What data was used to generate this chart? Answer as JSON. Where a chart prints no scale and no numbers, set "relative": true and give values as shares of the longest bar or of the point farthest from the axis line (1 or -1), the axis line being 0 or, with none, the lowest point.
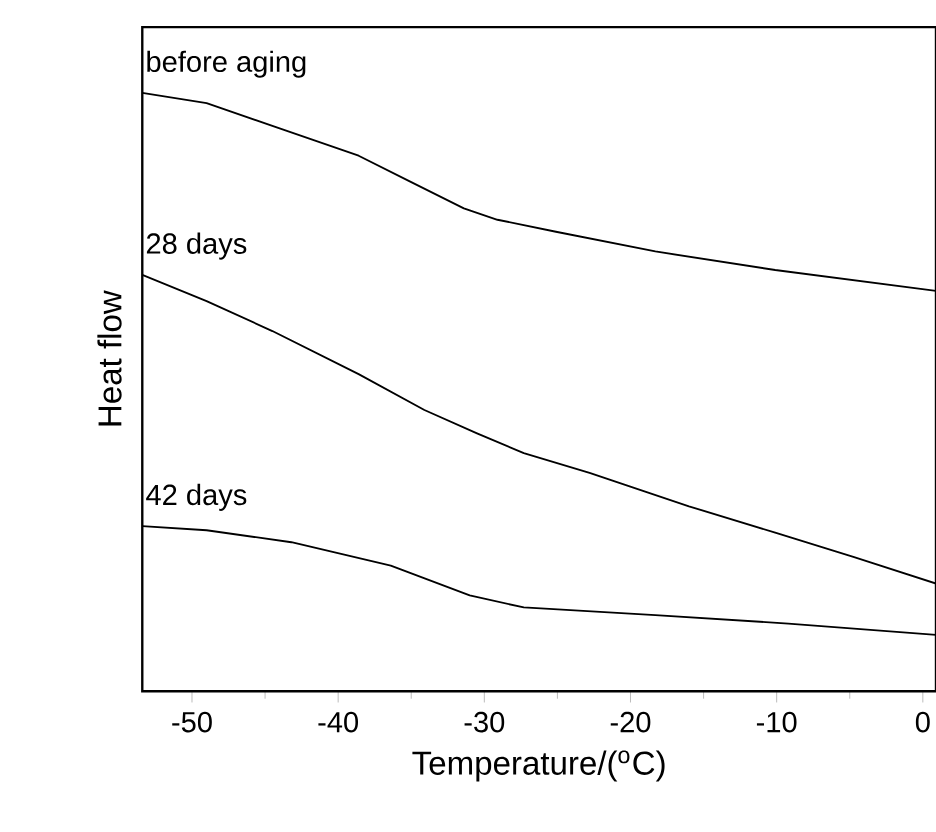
{
  "chart_data": {
    "type": "line",
    "relative": true,
    "xlabel": "Temperature/($^{o}$C)",
    "ylabel": "Heat flow",
    "xlim": [
      -53.4,
      0.9
    ],
    "xticks": [
      -50,
      -40,
      -30,
      -20,
      -10,
      0
    ],
    "grid": false,
    "marker": "none",
    "line_style": "solid",
    "series": [
      {
        "name": "before aging",
        "color": "#000000",
        "x": [
          -53.4,
          -49,
          -44.5,
          -38.6,
          -35,
          -31.4,
          -29.1,
          -25.1,
          -18.3,
          -10.1,
          0.9
        ],
        "values": [
          1,
          0.983,
          0.945,
          0.895,
          0.851,
          0.807,
          0.788,
          0.768,
          0.735,
          0.704,
          0.669
        ]
      },
      {
        "name": "28 days",
        "color": "#000000",
        "x": [
          -53.4,
          -49,
          -44.5,
          -38.6,
          -34.1,
          -30.5,
          -27.3,
          -22.8,
          -16.0,
          -10.1,
          -4.7,
          0.9
        ],
        "values": [
          0.696,
          0.652,
          0.602,
          0.53,
          0.47,
          0.431,
          0.398,
          0.365,
          0.309,
          0.265,
          0.224,
          0.18
        ]
      },
      {
        "name": "42 days",
        "color": "#000000",
        "x": [
          -53.4,
          -49,
          -43.2,
          -36.4,
          -31.0,
          -27.3,
          -18.3,
          -9.2,
          0.9
        ],
        "values": [
          0.276,
          0.269,
          0.249,
          0.21,
          0.16,
          0.14,
          0.127,
          0.113,
          0.094
        ]
      }
    ]
  }
}
